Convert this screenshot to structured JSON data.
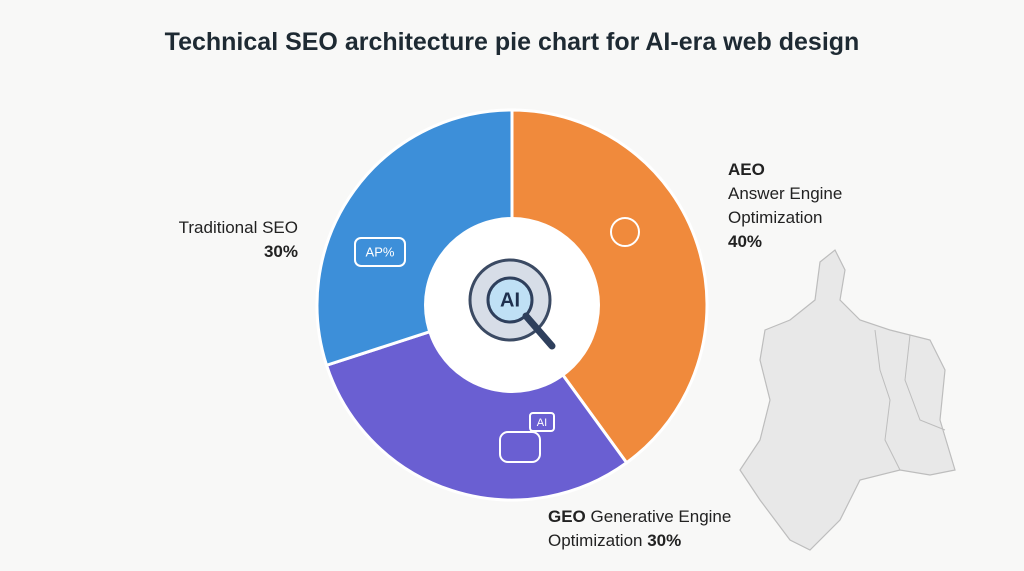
{
  "chart_data": {
    "type": "donut",
    "title": "Technical SEO architecture pie chart for AI-era web design",
    "categories": [
      "AEO",
      "GEO",
      "Traditional SEO"
    ],
    "descriptions": [
      "Answer Engine Optimization",
      "Generative Engine Optimization",
      null
    ],
    "values": [
      40,
      30,
      30
    ],
    "value_labels": [
      "40%",
      "30%",
      "30%"
    ],
    "colors": [
      "#f08a3c",
      "#6a5fd2",
      "#3d8fd9"
    ],
    "center_label": "AI",
    "icon_texts": [
      "AI",
      "AP%"
    ]
  }
}
